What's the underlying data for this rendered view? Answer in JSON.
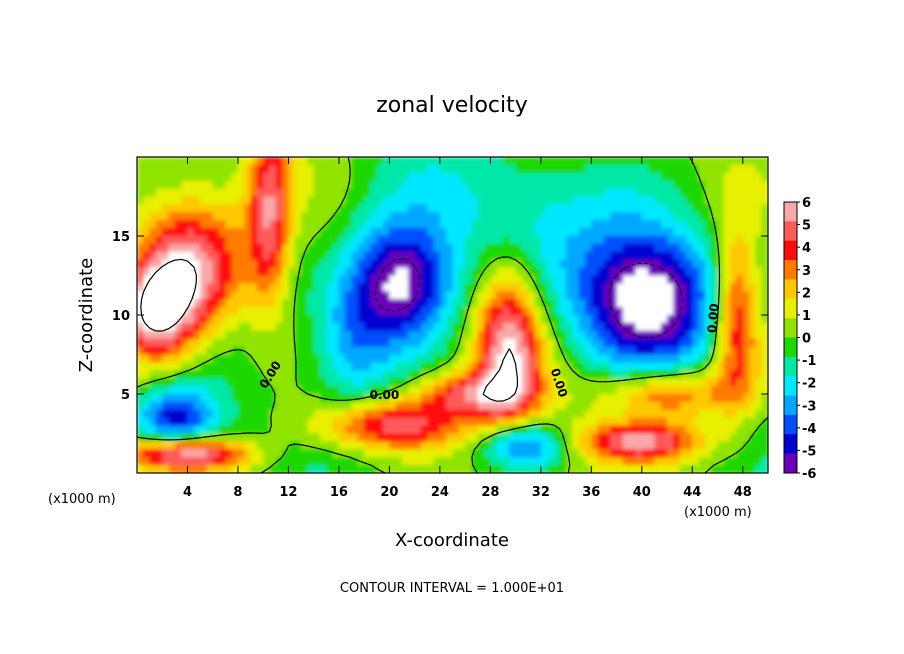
{
  "chart_data": {
    "type": "heatmap",
    "title": "zonal velocity",
    "xlabel": "X-coordinate",
    "ylabel": "Z-coordinate",
    "x_unit_left": "(x1000 m)",
    "x_unit_right": "(x1000 m)",
    "footer": "CONTOUR INTERVAL = 1.000E+01",
    "xlim": [
      0,
      50
    ],
    "ylim": [
      0,
      20
    ],
    "x_ticks": [
      4,
      8,
      12,
      16,
      20,
      24,
      28,
      32,
      36,
      40,
      44,
      48
    ],
    "x_tick_labels": [
      "4",
      "8",
      "12",
      "16",
      "20",
      "24",
      "28",
      "32",
      "36",
      "40",
      "44",
      "48"
    ],
    "y_ticks": [
      5,
      10,
      15
    ],
    "y_tick_labels": [
      "5",
      "10",
      "15"
    ],
    "colorbar": {
      "labels": [
        "6",
        "5",
        "4",
        "3",
        "2",
        "1",
        "0",
        "-1",
        "-2",
        "-3",
        "-4",
        "-5",
        "-6"
      ],
      "range": [
        -6,
        6
      ],
      "colors": [
        "#f7a8a8",
        "#ff5a5a",
        "#ff0a0a",
        "#ff7b00",
        "#ffc800",
        "#e6f000",
        "#90e400",
        "#1ed800",
        "#00e8a8",
        "#00e8ff",
        "#00a8ff",
        "#0050ff",
        "#0000d0",
        "#6a00b8"
      ]
    },
    "contour_labels": [
      {
        "text": "0.00",
        "x": 10.6,
        "y": 6.2,
        "angle": -58
      },
      {
        "text": "0.00",
        "x": 19.6,
        "y": 4.9,
        "angle": 0
      },
      {
        "text": "0.00",
        "x": 33.4,
        "y": 5.7,
        "angle": 72
      },
      {
        "text": "0.00",
        "x": 45.7,
        "y": 9.8,
        "angle": -85
      }
    ],
    "features": [
      {
        "kind": "positive",
        "x": 4,
        "y": 13,
        "rx": 4.5,
        "ry": 4.2,
        "amp": 5.5
      },
      {
        "kind": "positive",
        "x": 1.5,
        "y": 10,
        "rx": 3,
        "ry": 3,
        "amp": 6
      },
      {
        "kind": "positive",
        "x": 10.5,
        "y": 16.5,
        "rx": 1.6,
        "ry": 6,
        "amp": 4.5
      },
      {
        "kind": "positive",
        "x": 20,
        "y": 3,
        "rx": 6,
        "ry": 1.6,
        "amp": 5
      },
      {
        "kind": "positive",
        "x": 29.5,
        "y": 8,
        "rx": 2.6,
        "ry": 5,
        "amp": 6
      },
      {
        "kind": "positive",
        "x": 26,
        "y": 5,
        "rx": 4,
        "ry": 1.4,
        "amp": 4
      },
      {
        "kind": "positive",
        "x": 42,
        "y": 5,
        "rx": 5,
        "ry": 1.6,
        "amp": 4.5
      },
      {
        "kind": "positive",
        "x": 47.5,
        "y": 10,
        "rx": 1.8,
        "ry": 5.5,
        "amp": 5
      },
      {
        "kind": "positive",
        "x": 40,
        "y": 2,
        "rx": 5,
        "ry": 1.2,
        "amp": 5.5
      },
      {
        "kind": "positive",
        "x": 4,
        "y": 1.2,
        "rx": 5,
        "ry": 0.9,
        "amp": 6
      },
      {
        "kind": "negative",
        "x": 21,
        "y": 12,
        "rx": 4.2,
        "ry": 4,
        "amp": -7
      },
      {
        "kind": "negative",
        "x": 40.5,
        "y": 11.2,
        "rx": 5.5,
        "ry": 4.3,
        "amp": -7
      },
      {
        "kind": "negative",
        "x": 3,
        "y": 3.5,
        "rx": 3.2,
        "ry": 1.8,
        "amp": -5
      },
      {
        "kind": "negative",
        "x": 30.5,
        "y": 1.8,
        "rx": 3.2,
        "ry": 1.4,
        "amp": -5
      },
      {
        "kind": "negative",
        "x": 17,
        "y": 8,
        "rx": 3,
        "ry": 4,
        "amp": -2.5
      },
      {
        "kind": "negative",
        "x": 32,
        "y": 17,
        "rx": 10,
        "ry": 4,
        "amp": -1.5
      }
    ]
  }
}
